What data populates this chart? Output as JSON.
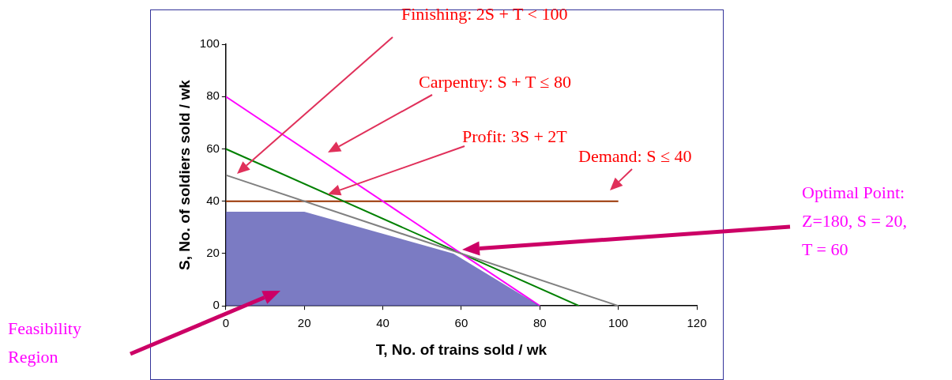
{
  "chart_data": {
    "type": "line",
    "xlabel": "T, No. of trains sold / wk",
    "ylabel": "S, No. of soldiers sold / wk",
    "xlim": [
      0,
      120
    ],
    "xticks": [
      0,
      20,
      40,
      60,
      80,
      100,
      120
    ],
    "ylim": [
      0,
      100
    ],
    "yticks": [
      0,
      20,
      40,
      60,
      80,
      100
    ],
    "grid": false,
    "legend": false,
    "marker": "none",
    "series": [
      {
        "type": "area",
        "color": "#5a5ab4",
        "x": [
          0,
          20,
          58,
          80
        ],
        "values": [
          36,
          36,
          20,
          0
        ]
      },
      {
        "color": "#808080",
        "x": [
          0,
          100
        ],
        "values": [
          50,
          0
        ]
      },
      {
        "color": "#ff00ff",
        "x": [
          0,
          80
        ],
        "values": [
          80,
          0
        ]
      },
      {
        "color": "#008000",
        "x": [
          0,
          90
        ],
        "values": [
          60,
          0
        ]
      },
      {
        "color": "#993300",
        "x": [
          0,
          100
        ],
        "values": [
          40,
          40
        ]
      }
    ],
    "annotations": [
      "Finishing: 2S + T < 100",
      "Carpentry: S + T ≤ 80",
      "Profit: 3S + 2T",
      "Demand: S ≤ 40",
      "Optimal Point:\nZ=180, S = 20,\nT = 60",
      "Feasibility\nRegion"
    ]
  }
}
